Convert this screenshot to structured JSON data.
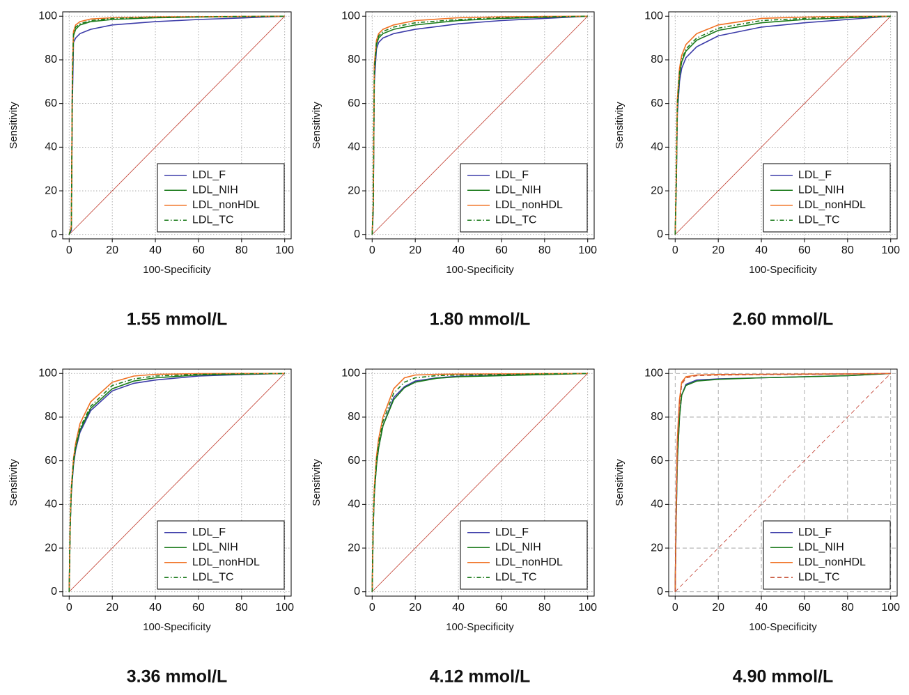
{
  "chart_data": [
    {
      "type": "line",
      "title": "1.55 mmol/L",
      "x_label": "100-Specificity",
      "y_label": "Sensitivity",
      "x": [
        0,
        1,
        1.5,
        2,
        3,
        5,
        10,
        20,
        40,
        60,
        80,
        100
      ],
      "series": [
        {
          "name": "LDL_F",
          "color": "#3b3ba8",
          "style": "solid",
          "values": [
            0,
            2,
            60,
            88,
            90,
            92,
            94,
            96,
            97.5,
            98.5,
            99.2,
            100
          ]
        },
        {
          "name": "LDL_NIH",
          "color": "#1a7a1a",
          "style": "solid",
          "values": [
            0,
            3,
            70,
            91,
            94,
            96,
            97.5,
            98.5,
            99.3,
            99.6,
            99.8,
            100
          ]
        },
        {
          "name": "LDL_nonHDL",
          "color": "#f07022",
          "style": "solid",
          "values": [
            0,
            4,
            75,
            93,
            96,
            97.5,
            98.7,
            99.3,
            99.7,
            99.8,
            99.9,
            100
          ]
        },
        {
          "name": "LDL_TC",
          "color": "#1a7a1a",
          "style": "dashdot",
          "values": [
            0,
            3,
            72,
            92,
            95,
            96.5,
            98,
            99,
            99.5,
            99.7,
            99.9,
            100
          ]
        }
      ],
      "xlim": [
        -3,
        103
      ],
      "ylim": [
        -2,
        102
      ],
      "xticks": [
        0,
        20,
        40,
        60,
        80,
        100
      ],
      "yticks": [
        0,
        20,
        40,
        60,
        80,
        100
      ],
      "grid": "dotted",
      "diagonal": "solid",
      "legend": "lower right"
    },
    {
      "type": "line",
      "title": "1.80 mmol/L",
      "x_label": "100-Specificity",
      "y_label": "Sensitivity",
      "x": [
        0,
        0.5,
        1,
        2,
        3,
        5,
        10,
        20,
        40,
        60,
        80,
        100
      ],
      "series": [
        {
          "name": "LDL_F",
          "color": "#3b3ba8",
          "style": "solid",
          "values": [
            0,
            10,
            70,
            85,
            88,
            90,
            92,
            94,
            96.5,
            98,
            99,
            100
          ]
        },
        {
          "name": "LDL_NIH",
          "color": "#1a7a1a",
          "style": "solid",
          "values": [
            0,
            12,
            75,
            87,
            90,
            92,
            94,
            96,
            98,
            99,
            99.5,
            100
          ]
        },
        {
          "name": "LDL_nonHDL",
          "color": "#f07022",
          "style": "solid",
          "values": [
            0,
            14,
            78,
            89,
            92,
            94,
            96,
            98,
            99.3,
            99.7,
            99.9,
            100
          ]
        },
        {
          "name": "LDL_TC",
          "color": "#1a7a1a",
          "style": "dashdot",
          "values": [
            0,
            13,
            76,
            88,
            91,
            93,
            95,
            97,
            98.5,
            99.3,
            99.7,
            100
          ]
        }
      ],
      "xlim": [
        -3,
        103
      ],
      "ylim": [
        -2,
        102
      ],
      "xticks": [
        0,
        20,
        40,
        60,
        80,
        100
      ],
      "yticks": [
        0,
        20,
        40,
        60,
        80,
        100
      ],
      "grid": "dotted",
      "diagonal": "solid",
      "legend": "lower right"
    },
    {
      "type": "line",
      "title": "2.60 mmol/L",
      "x_label": "100-Specificity",
      "y_label": "Sensitivity",
      "x": [
        0,
        0.5,
        1,
        2,
        3,
        5,
        10,
        20,
        40,
        60,
        80,
        100
      ],
      "series": [
        {
          "name": "LDL_F",
          "color": "#3b3ba8",
          "style": "solid",
          "values": [
            0,
            20,
            55,
            70,
            76,
            81,
            86,
            91,
            95,
            97,
            98.5,
            100
          ]
        },
        {
          "name": "LDL_NIH",
          "color": "#1a7a1a",
          "style": "solid",
          "values": [
            0,
            22,
            58,
            73,
            79,
            84,
            89,
            93.5,
            97,
            98.5,
            99.3,
            100
          ]
        },
        {
          "name": "LDL_nonHDL",
          "color": "#f07022",
          "style": "solid",
          "values": [
            0,
            25,
            62,
            76,
            82,
            87,
            92,
            96,
            99,
            99.6,
            99.9,
            100
          ]
        },
        {
          "name": "LDL_TC",
          "color": "#1a7a1a",
          "style": "dashdot",
          "values": [
            0,
            23,
            60,
            74,
            80,
            85,
            90,
            94.5,
            98,
            99,
            99.6,
            100
          ]
        }
      ],
      "xlim": [
        -3,
        103
      ],
      "ylim": [
        -2,
        102
      ],
      "xticks": [
        0,
        20,
        40,
        60,
        80,
        100
      ],
      "yticks": [
        0,
        20,
        40,
        60,
        80,
        100
      ],
      "grid": "dotted",
      "diagonal": "solid",
      "legend": "lower right"
    },
    {
      "type": "line",
      "title": "3.36 mmol/L",
      "x_label": "100-Specificity",
      "y_label": "Sensitivity",
      "x": [
        0,
        0.5,
        1,
        2,
        3,
        5,
        10,
        20,
        30,
        40,
        60,
        80,
        100
      ],
      "series": [
        {
          "name": "LDL_F",
          "color": "#3b3ba8",
          "style": "solid",
          "values": [
            0,
            30,
            45,
            58,
            65,
            73,
            83,
            92,
            95.5,
            97,
            98.8,
            99.5,
            100
          ]
        },
        {
          "name": "LDL_NIH",
          "color": "#1a7a1a",
          "style": "solid",
          "values": [
            0,
            30,
            46,
            59,
            66,
            74,
            84,
            93,
            96.5,
            98,
            99.3,
            99.7,
            100
          ]
        },
        {
          "name": "LDL_nonHDL",
          "color": "#f07022",
          "style": "solid",
          "values": [
            0,
            32,
            48,
            61,
            68,
            77,
            87,
            96,
            98.8,
            99.6,
            99.9,
            100,
            100
          ]
        },
        {
          "name": "LDL_TC",
          "color": "#1a7a1a",
          "style": "dashdot",
          "values": [
            0,
            31,
            47,
            60,
            67,
            75,
            85,
            94.5,
            97.5,
            98.8,
            99.6,
            99.8,
            100
          ]
        }
      ],
      "xlim": [
        -3,
        103
      ],
      "ylim": [
        -2,
        102
      ],
      "xticks": [
        0,
        20,
        40,
        60,
        80,
        100
      ],
      "yticks": [
        0,
        20,
        40,
        60,
        80,
        100
      ],
      "grid": "dotted",
      "diagonal": "solid",
      "legend": "lower right"
    },
    {
      "type": "line",
      "title": "4.12 mmol/L",
      "x_label": "100-Specificity",
      "y_label": "Sensitivity",
      "x": [
        0,
        0.5,
        1,
        2,
        3,
        5,
        10,
        15,
        20,
        30,
        40,
        60,
        80,
        100
      ],
      "series": [
        {
          "name": "LDL_F",
          "color": "#3b3ba8",
          "style": "solid",
          "values": [
            0,
            30,
            45,
            58,
            66,
            76,
            89,
            94,
            96.5,
            98,
            98.7,
            99.2,
            99.6,
            100
          ]
        },
        {
          "name": "LDL_NIH",
          "color": "#1a7a1a",
          "style": "solid",
          "values": [
            0,
            30,
            45,
            58,
            66,
            76,
            88,
            93.5,
            96,
            97.8,
            98.5,
            99,
            99.5,
            100
          ]
        },
        {
          "name": "LDL_nonHDL",
          "color": "#f07022",
          "style": "solid",
          "values": [
            0,
            32,
            48,
            62,
            70,
            80,
            93,
            98,
            99.3,
            99.6,
            99.7,
            99.8,
            99.9,
            100
          ]
        },
        {
          "name": "LDL_TC",
          "color": "#1a7a1a",
          "style": "dashdot",
          "values": [
            0,
            31,
            46,
            60,
            68,
            78,
            91,
            96,
            98,
            99,
            99.3,
            99.5,
            99.8,
            100
          ]
        }
      ],
      "xlim": [
        -3,
        103
      ],
      "ylim": [
        -2,
        102
      ],
      "xticks": [
        0,
        20,
        40,
        60,
        80,
        100
      ],
      "yticks": [
        0,
        20,
        40,
        60,
        80,
        100
      ],
      "grid": "dotted",
      "diagonal": "solid",
      "legend": "lower right"
    },
    {
      "type": "line",
      "title": "4.90 mmol/L",
      "x_label": "100-Specificity",
      "y_label": "Sensitivity",
      "x": [
        0,
        0.5,
        1,
        2,
        3,
        5,
        10,
        20,
        40,
        60,
        80,
        100
      ],
      "series": [
        {
          "name": "LDL_F",
          "color": "#3b3ba8",
          "style": "solid",
          "values": [
            0,
            35,
            60,
            80,
            90,
            95,
            97,
            97.5,
            98,
            98.5,
            99,
            100
          ]
        },
        {
          "name": "LDL_NIH",
          "color": "#1a7a1a",
          "style": "solid",
          "values": [
            0,
            35,
            60,
            80,
            90,
            94.5,
            96.5,
            97.3,
            98,
            98.5,
            99,
            100
          ]
        },
        {
          "name": "LDL_nonHDL",
          "color": "#f07022",
          "style": "solid",
          "values": [
            0,
            40,
            70,
            88,
            96,
            98.5,
            99.3,
            99.5,
            99.6,
            99.7,
            99.8,
            100
          ]
        },
        {
          "name": "LDL_TC",
          "color": "#c8553a",
          "style": "dashed",
          "values": [
            0,
            38,
            68,
            86,
            95,
            98,
            99,
            99.3,
            99.5,
            99.6,
            99.8,
            100
          ]
        }
      ],
      "xlim": [
        -3,
        103
      ],
      "ylim": [
        -2,
        102
      ],
      "xticks": [
        0,
        20,
        40,
        60,
        80,
        100
      ],
      "yticks": [
        0,
        20,
        40,
        60,
        80,
        100
      ],
      "grid": "dashed",
      "diagonal": "dashed",
      "legend": "lower right"
    }
  ]
}
